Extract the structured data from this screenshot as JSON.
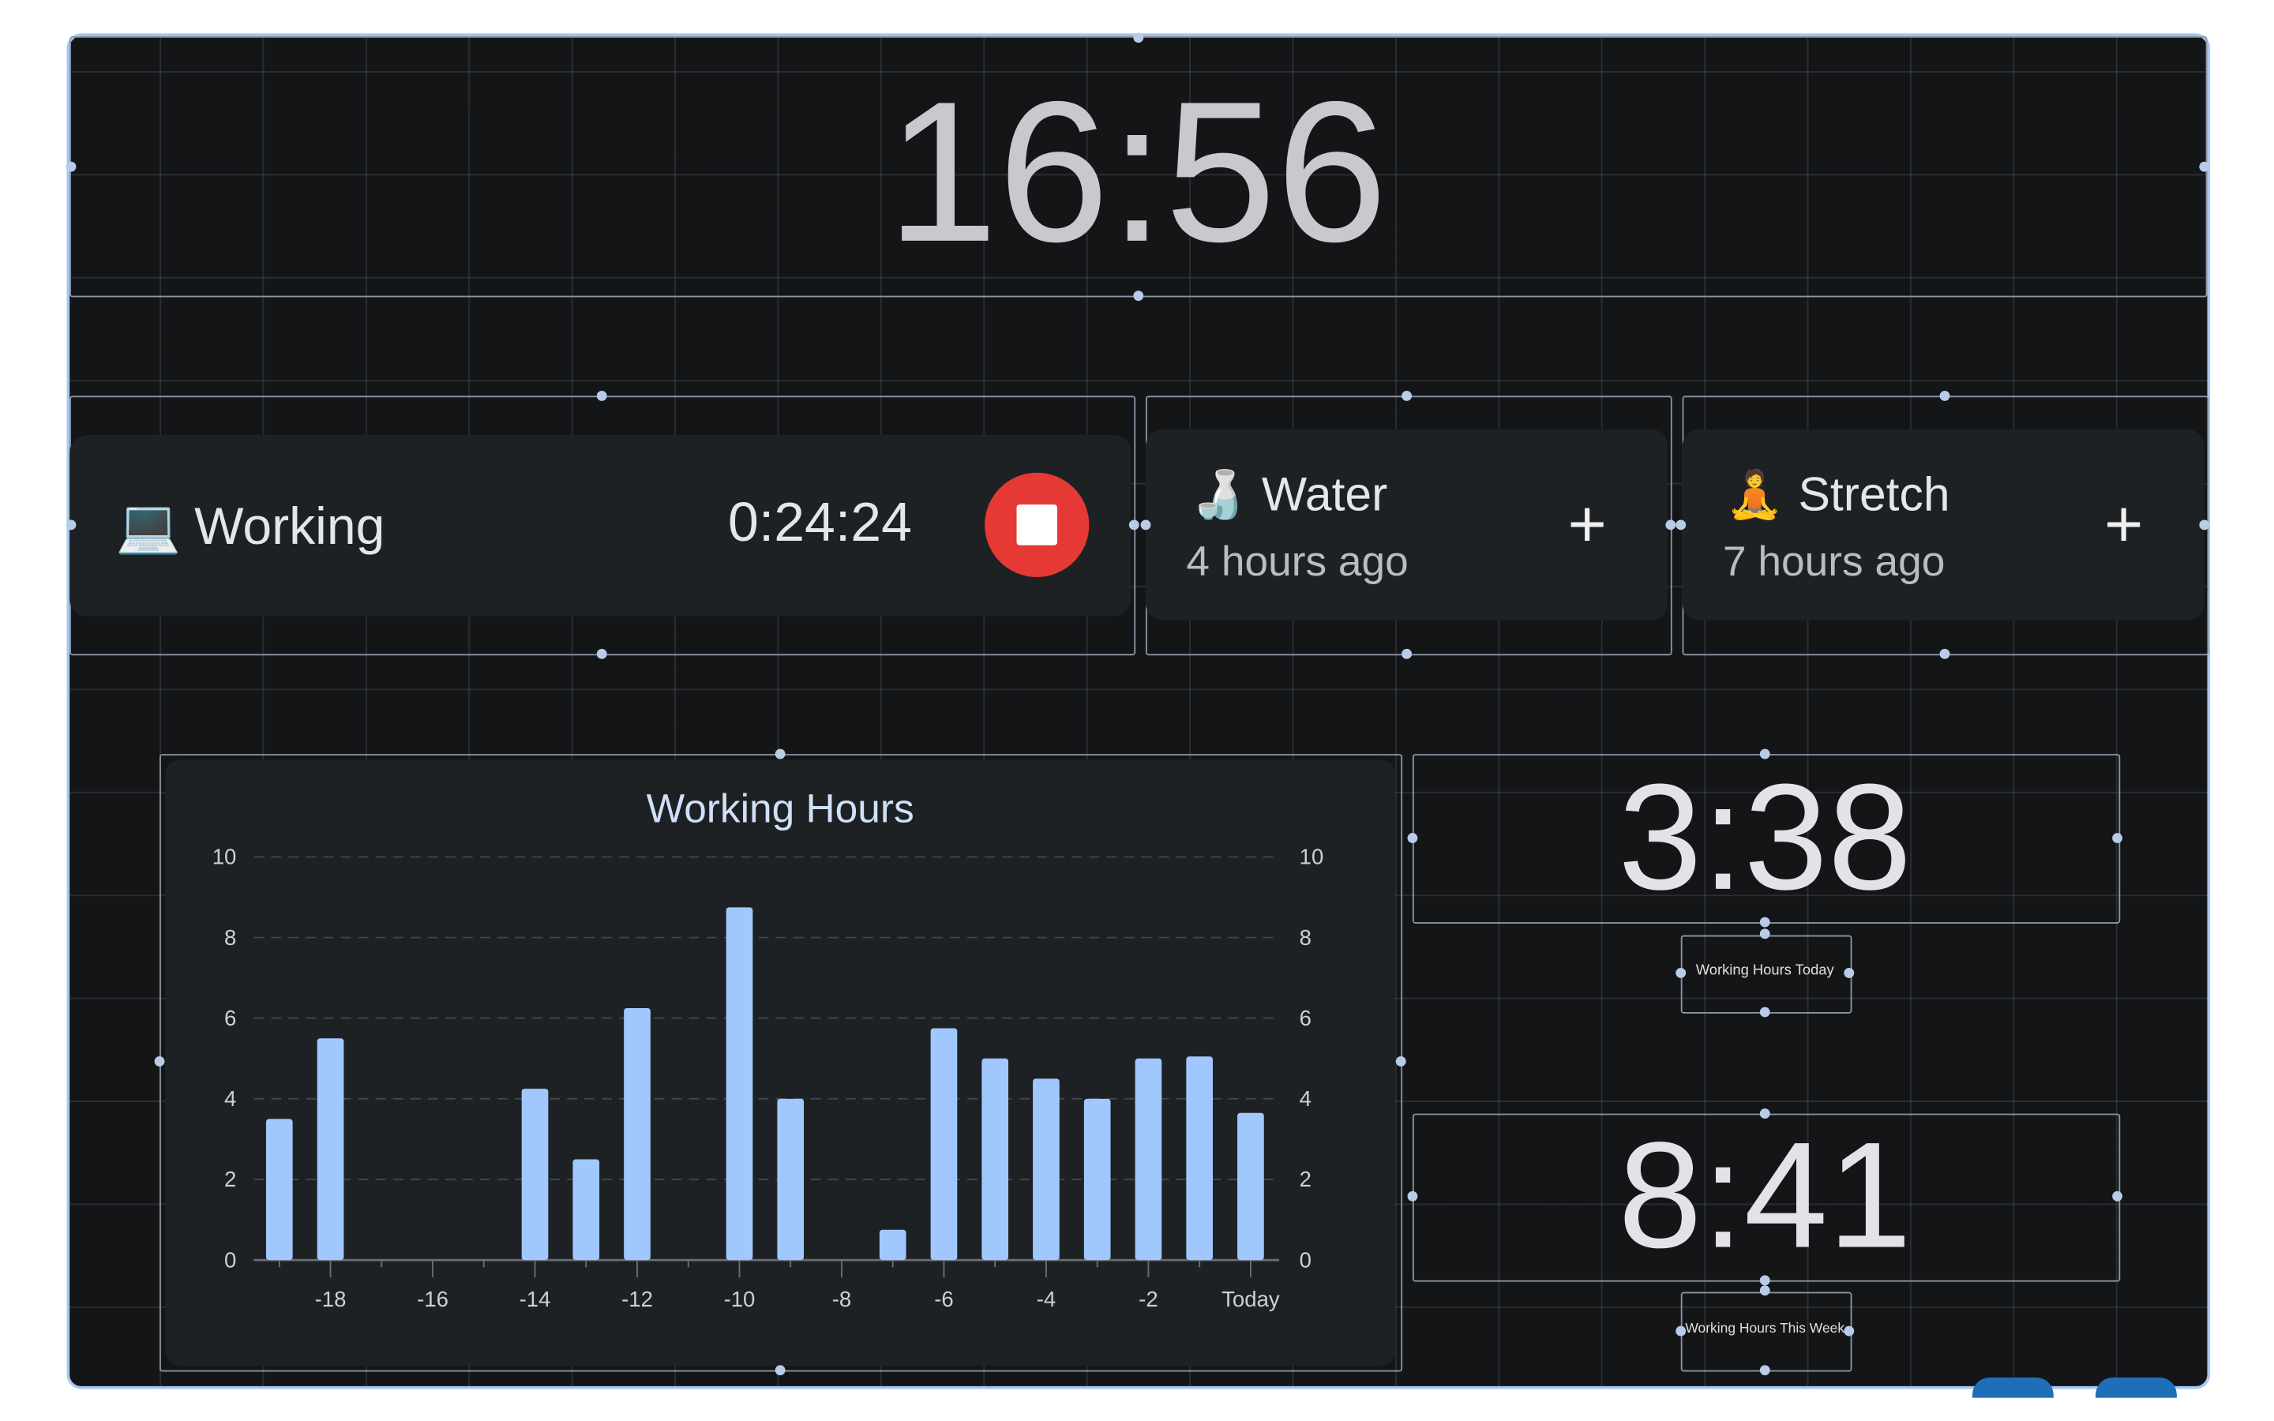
{
  "clock": {
    "time": "16:56"
  },
  "activity": {
    "icon": "laptop-icon",
    "emoji": "💻",
    "label": "Working",
    "elapsed": "0:24:24",
    "stop_icon": "stop-icon"
  },
  "trackers": [
    {
      "emoji": "🍶",
      "icon": "water-bottle-icon",
      "label": "Water",
      "last": "4 hours ago",
      "add": "+"
    },
    {
      "emoji": "🧘",
      "icon": "meditation-icon",
      "label": "Stretch",
      "last": "7 hours ago",
      "add": "+"
    }
  ],
  "stats": [
    {
      "value": "3:38",
      "label": "Working Hours Today"
    },
    {
      "value": "8:41",
      "label": "Working Hours This Week"
    }
  ],
  "colors": {
    "accent": "#a0c8ff",
    "stop": "#e53935",
    "background": "#131517",
    "card": "#1e2124",
    "selection": "#a8c8f0"
  },
  "chart_data": {
    "type": "bar",
    "title": "Working Hours",
    "x": [
      -19,
      -18,
      -17,
      -16,
      -15,
      -14,
      -13,
      -12,
      -11,
      -10,
      -9,
      -8,
      -7,
      -6,
      -5,
      -4,
      -3,
      -2,
      -1,
      0
    ],
    "values": [
      3.5,
      5.5,
      0,
      0,
      0,
      4.25,
      2.5,
      6.25,
      0,
      8.75,
      4,
      0,
      0.75,
      5.75,
      5,
      4.5,
      4,
      5,
      5.05,
      3.65
    ],
    "x_tick_labels": [
      "-18",
      "-16",
      "-14",
      "-12",
      "-10",
      "-8",
      "-6",
      "-4",
      "-2",
      "Today"
    ],
    "y_ticks": [
      "0",
      "2",
      "4",
      "6",
      "8",
      "10"
    ],
    "ylim": [
      0,
      10
    ],
    "grid": "horizontal dashed",
    "bar_color": "#a0c8ff",
    "y_axis": "both sides"
  }
}
